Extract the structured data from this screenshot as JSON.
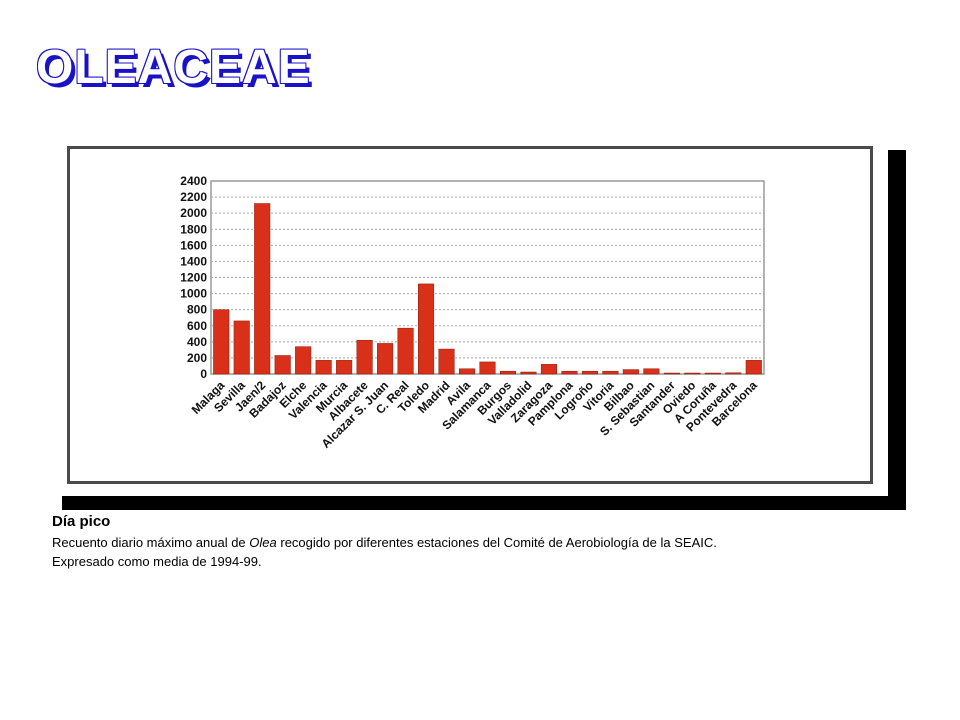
{
  "slide": {
    "title": "OLEACEAE"
  },
  "caption": {
    "heading": "Día pico",
    "line1_before": "Recuento diario máximo anual de ",
    "line1_italic": "Olea",
    "line1_after": " recogido por diferentes estaciones del Comité de Aerobiología de la SEAIC.",
    "line2": "Expresado como media de 1994-99."
  },
  "colors": {
    "bar": "#d9301a",
    "bar_stroke": "#8a1a0a",
    "title_outline": "#1a12c8"
  },
  "chart_data": {
    "type": "bar",
    "title": "",
    "xlabel": "",
    "ylabel": "",
    "ylim": [
      0,
      2400
    ],
    "yticks": [
      0,
      200,
      400,
      600,
      800,
      1000,
      1200,
      1400,
      1600,
      1800,
      2000,
      2200,
      2400
    ],
    "grid": true,
    "categories": [
      "Malaga",
      "Sevilla",
      "Jaen/2",
      "Badajoz",
      "Elche",
      "Valencia",
      "Murcia",
      "Albacete",
      "Alcazar S. Juan",
      "C. Real",
      "Toledo",
      "Madrid",
      "Avila",
      "Salamanca",
      "Burgos",
      "Valladolid",
      "Zaragoza",
      "Pamplona",
      "Logroño",
      "Vitoria",
      "Bilbao",
      "S. Sebastian",
      "Santander",
      "Oviedo",
      "A Coruña",
      "Pontevedra",
      "Barcelona"
    ],
    "values": [
      800,
      660,
      2120,
      230,
      340,
      170,
      170,
      420,
      380,
      570,
      1120,
      310,
      65,
      150,
      35,
      25,
      120,
      35,
      35,
      35,
      55,
      65,
      8,
      8,
      8,
      15,
      170
    ]
  }
}
